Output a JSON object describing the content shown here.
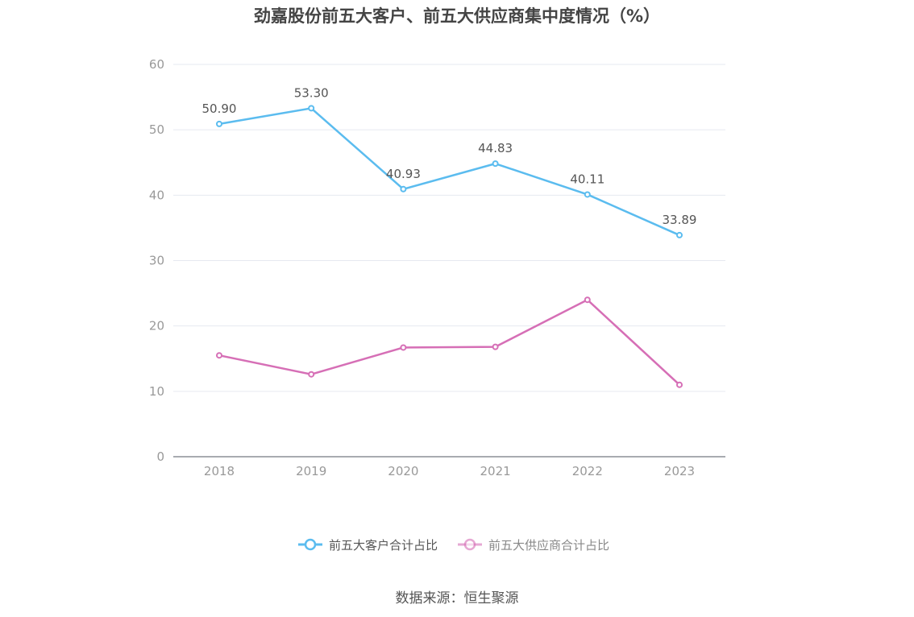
{
  "chart_data": {
    "type": "line",
    "title": "劲嘉股份前五大客户、前五大供应商集中度情况（%）",
    "categories": [
      "2018",
      "2019",
      "2020",
      "2021",
      "2022",
      "2023"
    ],
    "ylim": [
      0,
      60
    ],
    "yticks": [
      0,
      10,
      20,
      30,
      40,
      50,
      60
    ],
    "grid": true,
    "legend_position": "bottom",
    "series": [
      {
        "name": "前五大客户合计占比",
        "color": "#5bbcef",
        "values": [
          50.9,
          53.3,
          40.93,
          44.83,
          40.11,
          33.89
        ],
        "labels": [
          "50.90",
          "53.30",
          "40.93",
          "44.83",
          "40.11",
          "33.89"
        ],
        "show_labels": true
      },
      {
        "name": "前五大供应商合计占比",
        "color": "#d66fb6",
        "values": [
          15.5,
          12.6,
          16.7,
          16.8,
          24.0,
          11.0
        ],
        "show_labels": false
      }
    ]
  },
  "source_note": "数据来源：恒生聚源"
}
